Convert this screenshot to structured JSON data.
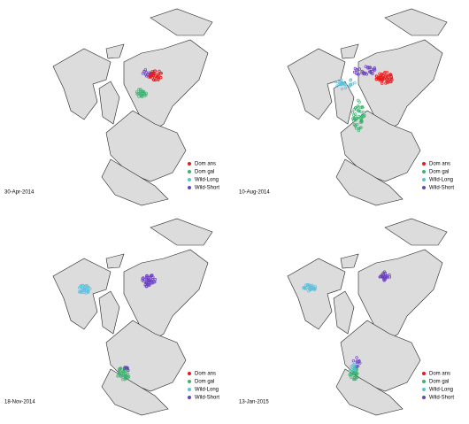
{
  "panels": [
    {
      "date": "30-Apr-2014",
      "legend": [
        {
          "label": "Dom ans",
          "color": "#e41a1c"
        },
        {
          "label": "Dom gal",
          "color": "#3cb371"
        },
        {
          "label": "Wild-Long",
          "color": "#5bc0de"
        },
        {
          "label": "Wild-Short",
          "color": "#6a3fc0"
        }
      ]
    },
    {
      "date": "10-Aug-2014",
      "legend": [
        {
          "label": "Dom ans",
          "color": "#e41a1c"
        },
        {
          "label": "Dom gal",
          "color": "#3cb371"
        },
        {
          "label": "Wild-Long",
          "color": "#5bc0de"
        },
        {
          "label": "Wild-Short",
          "color": "#6a3fc0"
        }
      ]
    },
    {
      "date": "18-Nov-2014",
      "legend": [
        {
          "label": "Dom ans",
          "color": "#e41a1c"
        },
        {
          "label": "Dom gal",
          "color": "#3cb371"
        },
        {
          "label": "Wild-Long",
          "color": "#5bc0de"
        },
        {
          "label": "Wild-Short",
          "color": "#6a3fc0"
        }
      ]
    },
    {
      "date": "13-Jan-2015",
      "legend": [
        {
          "label": "Dom ans",
          "color": "#e41a1c"
        },
        {
          "label": "Dom gal",
          "color": "#3cb371"
        },
        {
          "label": "Wild-Long",
          "color": "#5bc0de"
        },
        {
          "label": "Wild-Short",
          "color": "#6a3fc0"
        }
      ]
    }
  ]
}
